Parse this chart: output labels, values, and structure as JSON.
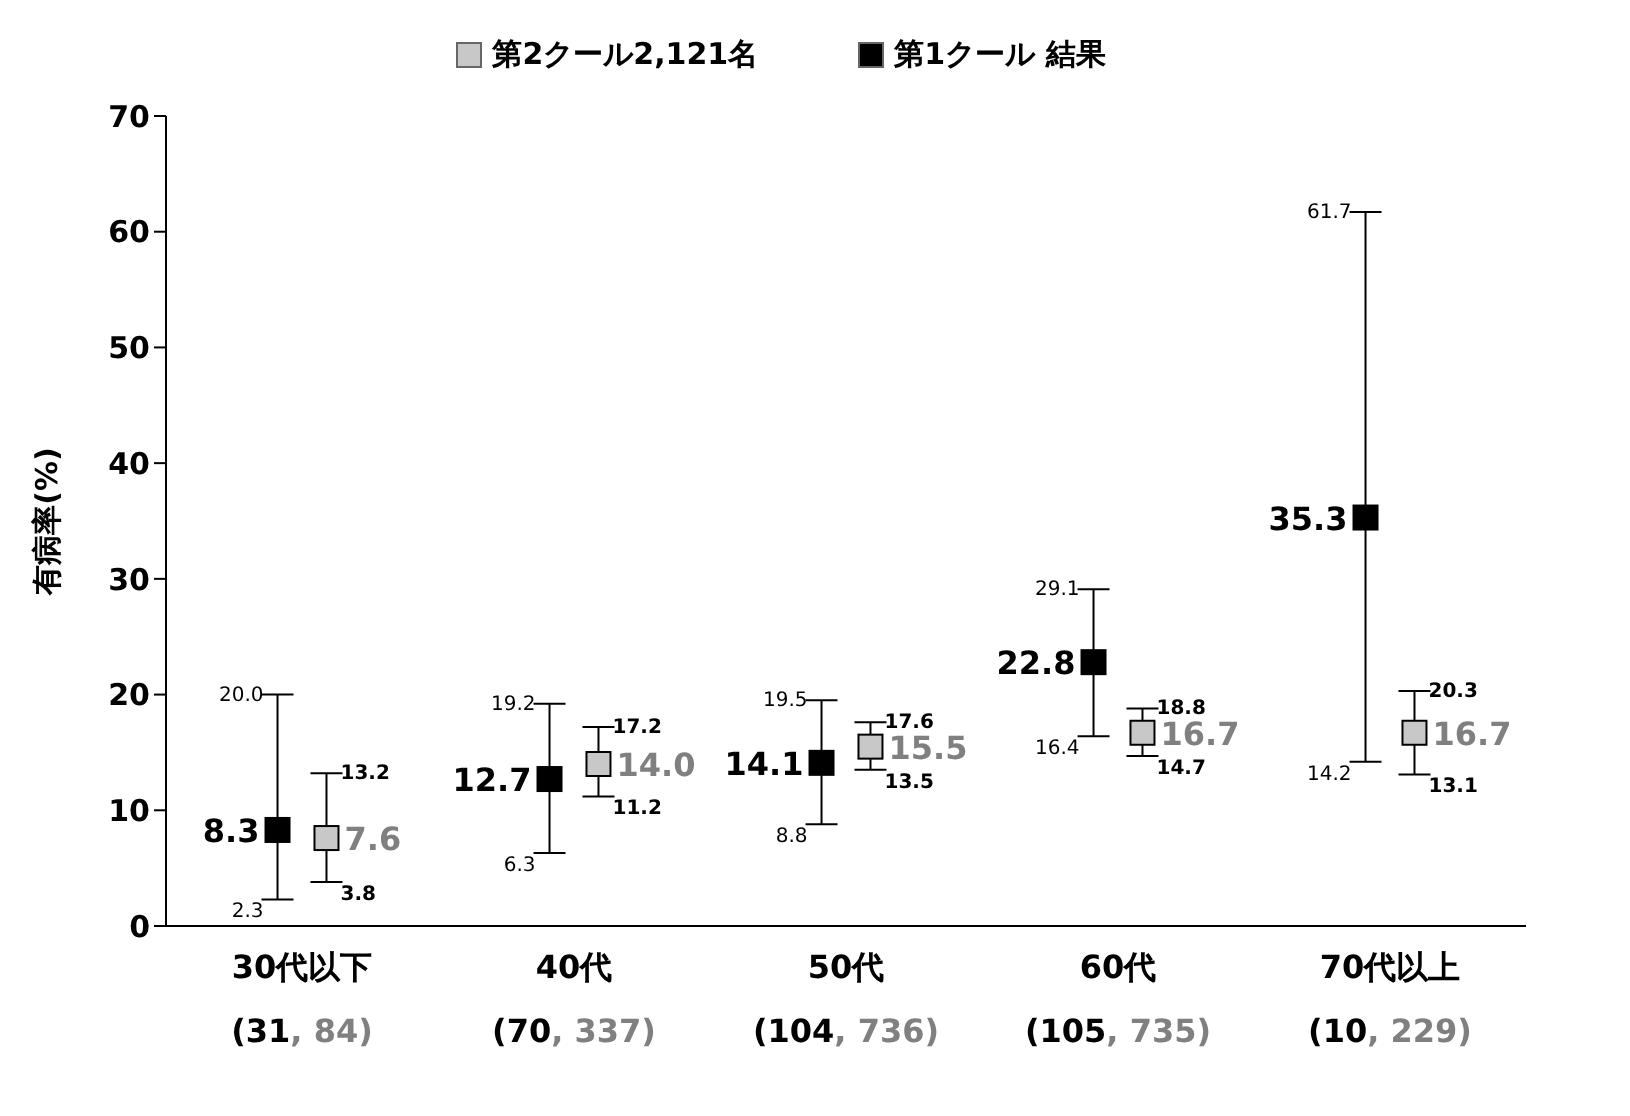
{
  "chart_data": {
    "type": "scatter",
    "ylabel": "有病率(%)",
    "categories": [
      "30代以下\n(31, 84)",
      "40代\n(70, 337)",
      "50代\n(104, 736)",
      "60代\n(105, 735)",
      "70代以上\n(10, 229)"
    ],
    "series": [
      {
        "name": "第2クール2,121名",
        "color": "#c8c8c8",
        "values": [
          7.6,
          14.0,
          15.5,
          16.7,
          16.7
        ],
        "value_labels": [
          "7.6",
          "14.0",
          "15.5",
          "16.7",
          "16.7"
        ],
        "errors": [
          [
            3.8,
            13.2
          ],
          [
            11.2,
            17.2
          ],
          [
            13.5,
            17.6
          ],
          [
            14.7,
            18.8
          ],
          [
            13.1,
            20.3
          ]
        ]
      },
      {
        "name": "第1クール 結果",
        "color": "#000000",
        "values": [
          8.3,
          12.7,
          14.1,
          22.8,
          35.3
        ],
        "errors": [
          [
            2.3,
            20.0
          ],
          [
            6.3,
            19.2
          ],
          [
            8.8,
            19.5
          ],
          [
            16.4,
            29.1
          ],
          [
            14.2,
            61.7
          ]
        ]
      }
    ],
    "annotations": [
      {
        "text": "3.8",
        "x": "30代以下\n(31, 84)",
        "y": 3.8
      },
      {
        "text": "13.2",
        "x": "30代以下\n(31, 84)",
        "y": 13.2
      },
      {
        "text": "11.2",
        "x": "40代\n(70, 337)",
        "y": 11.2
      },
      {
        "text": "17.2",
        "x": "40代\n(70, 337)",
        "y": 17.2
      },
      {
        "text": "13.5",
        "x": "50代\n(104, 736)",
        "y": 13.5
      },
      {
        "text": "17.6",
        "x": "50代\n(104, 736)",
        "y": 17.6
      },
      {
        "text": "14.7",
        "x": "60代\n(105, 735)",
        "y": 14.7
      },
      {
        "text": "18.8",
        "x": "60代\n(105, 735)",
        "y": 18.8
      },
      {
        "text": "13.1",
        "x": "70代以上\n(10, 229)",
        "y": 13.1
      },
      {
        "text": "20.3",
        "x": "70代以上\n(10, 229)",
        "y": 20.3
      },
      {
        "text": "2.3",
        "x": "30代以下\n(31, 84)",
        "y": 2.3
      },
      {
        "text": "20.0",
        "x": "30代以下\n(31, 84)",
        "y": 20.0
      },
      {
        "text": "6.3",
        "x": "40代\n(70, 337)",
        "y": 6.3
      },
      {
        "text": "19.2",
        "x": "40代\n(70, 337)",
        "y": 19.2
      },
      {
        "text": "8.8",
        "x": "50代\n(104, 736)",
        "y": 8.8
      },
      {
        "text": "19.5",
        "x": "50代\n(104, 736)",
        "y": 19.5
      },
      {
        "text": "16.4",
        "x": "60代\n(105, 735)",
        "y": 16.4
      },
      {
        "text": "29.1",
        "x": "60代\n(105, 735)",
        "y": 29.1
      },
      {
        "text": "14.2",
        "x": "70代以上\n(10, 229)",
        "y": 14.2
      },
      {
        "text": "61.7",
        "x": "70代以上\n(10, 229)",
        "y": 61.7
      }
    ],
    "ylim": [
      0,
      70
    ],
    "yticks": [
      0,
      10,
      20,
      30,
      40,
      50,
      60,
      70
    ],
    "grid": false,
    "legend": "top",
    "marker": "square",
    "data_labels": true
  }
}
